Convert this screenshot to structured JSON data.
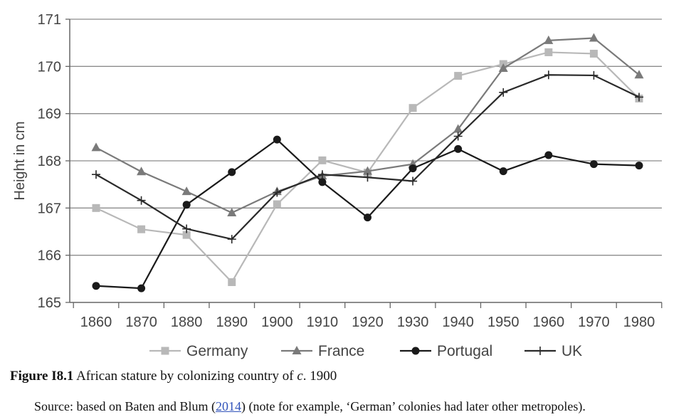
{
  "chart_data": {
    "type": "line",
    "title": "",
    "xlabel": "",
    "ylabel": "Height in cm",
    "ylim": [
      165,
      171
    ],
    "yticks": [
      165,
      166,
      167,
      168,
      169,
      170,
      171
    ],
    "x": [
      1860,
      1870,
      1880,
      1890,
      1900,
      1910,
      1920,
      1930,
      1940,
      1950,
      1960,
      1970,
      1980
    ],
    "grid": "horizontal",
    "legend_position": "bottom",
    "series": [
      {
        "name": "Germany",
        "marker": "square",
        "color": "#b8b8b8",
        "values": [
          167.0,
          166.55,
          166.43,
          165.43,
          167.08,
          168.01,
          167.75,
          169.12,
          169.8,
          170.05,
          170.3,
          170.27,
          169.32
        ]
      },
      {
        "name": "France",
        "marker": "triangle",
        "color": "#7a7a7a",
        "values": [
          168.28,
          167.77,
          167.35,
          166.9,
          167.35,
          167.68,
          167.78,
          167.93,
          168.67,
          169.96,
          170.55,
          170.6,
          169.82
        ]
      },
      {
        "name": "Portugal",
        "marker": "circle",
        "color": "#1a1a1a",
        "values": [
          165.35,
          165.3,
          167.07,
          167.76,
          168.45,
          167.55,
          166.8,
          167.84,
          168.25,
          167.78,
          168.12,
          167.93,
          167.9
        ]
      },
      {
        "name": "UK",
        "marker": "plus",
        "color": "#2a2a2a",
        "values": [
          167.71,
          167.16,
          166.56,
          166.34,
          167.33,
          167.71,
          167.65,
          167.57,
          168.52,
          169.45,
          169.82,
          169.81,
          169.35
        ]
      }
    ]
  },
  "caption": {
    "label": "Figure I8.1",
    "text_before": " African stature by colonizing country of ",
    "text_italic": "c",
    "text_after": ". 1900"
  },
  "source": {
    "text_before": "Source: based on Baten and Blum (",
    "link_text": "2014",
    "text_after": ") (note for example, ‘German’ colonies had later other metropoles)."
  }
}
